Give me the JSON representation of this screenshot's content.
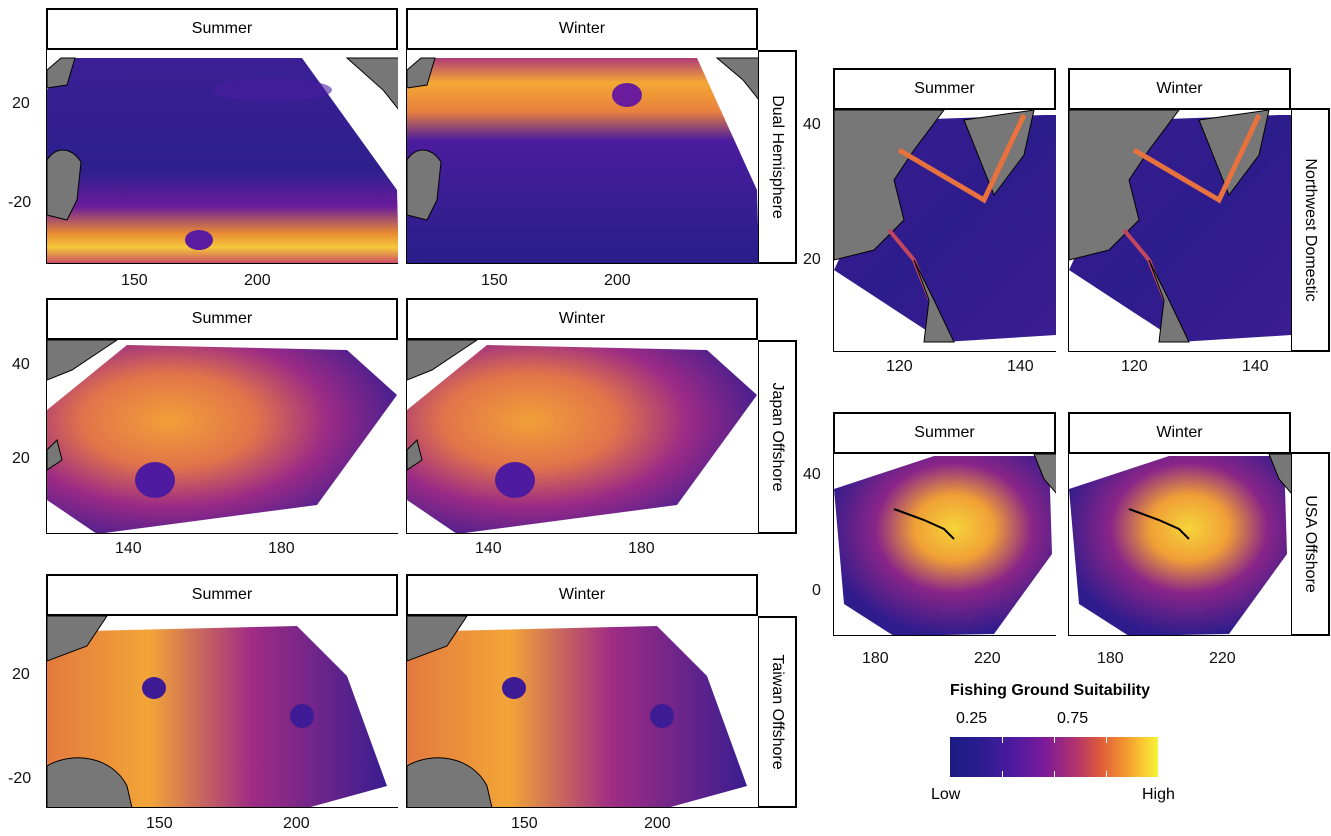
{
  "legend": {
    "title": "Fishing Ground Suitability",
    "tick_labels": [
      "0.25",
      "0.75"
    ],
    "low_label": "Low",
    "high_label": "High",
    "colormap": [
      "#1c1c84",
      "#4d1aa0",
      "#b0326e",
      "#f39630",
      "#f4f43a"
    ]
  },
  "panels": {
    "dual": {
      "row_label": "Dual Hemisphere",
      "col_labels": [
        "Summer",
        "Winter"
      ],
      "y_ticks": [
        "20",
        "-20"
      ],
      "x_ticks": [
        "150",
        "200"
      ]
    },
    "japan": {
      "row_label": "Japan Offshore",
      "col_labels": [
        "Summer",
        "Winter"
      ],
      "y_ticks": [
        "40",
        "20"
      ],
      "x_ticks": [
        "140",
        "180"
      ]
    },
    "taiwan": {
      "row_label": "Taiwan Offshore",
      "col_labels": [
        "Summer",
        "Winter"
      ],
      "y_ticks": [
        "20",
        "-20"
      ],
      "x_ticks": [
        "150",
        "200"
      ]
    },
    "northwest": {
      "row_label": "Northwest Domestic",
      "col_labels": [
        "Summer",
        "Winter"
      ],
      "y_ticks": [
        "40",
        "20"
      ],
      "x_ticks": [
        "120",
        "140"
      ]
    },
    "usa": {
      "row_label": "USA Offshore",
      "col_labels": [
        "Summer",
        "Winter"
      ],
      "y_ticks": [
        "40",
        "0"
      ],
      "x_ticks": [
        "180",
        "220"
      ]
    }
  },
  "chart_data": [
    {
      "type": "heatmap",
      "title": "",
      "row": "Dual Hemisphere",
      "columns": [
        "Summer",
        "Winter"
      ],
      "xlabel": "",
      "ylabel": "",
      "x_ticks": [
        150,
        200
      ],
      "y_ticks": [
        20,
        -20
      ],
      "value_range": [
        "Low",
        "High"
      ]
    },
    {
      "type": "heatmap",
      "title": "",
      "row": "Japan Offshore",
      "columns": [
        "Summer",
        "Winter"
      ],
      "xlabel": "",
      "ylabel": "",
      "x_ticks": [
        140,
        180
      ],
      "y_ticks": [
        40,
        20
      ],
      "value_range": [
        "Low",
        "High"
      ]
    },
    {
      "type": "heatmap",
      "title": "",
      "row": "Taiwan Offshore",
      "columns": [
        "Summer",
        "Winter"
      ],
      "xlabel": "",
      "ylabel": "",
      "x_ticks": [
        150,
        200
      ],
      "y_ticks": [
        20,
        -20
      ],
      "value_range": [
        "Low",
        "High"
      ]
    },
    {
      "type": "heatmap",
      "title": "",
      "row": "Northwest Domestic",
      "columns": [
        "Summer",
        "Winter"
      ],
      "xlabel": "",
      "ylabel": "",
      "x_ticks": [
        120,
        140
      ],
      "y_ticks": [
        40,
        20
      ],
      "value_range": [
        "Low",
        "High"
      ]
    },
    {
      "type": "heatmap",
      "title": "",
      "row": "USA Offshore",
      "columns": [
        "Summer",
        "Winter"
      ],
      "xlabel": "",
      "ylabel": "",
      "x_ticks": [
        180,
        220
      ],
      "y_ticks": [
        40,
        0
      ],
      "value_range": [
        "Low",
        "High"
      ]
    }
  ]
}
